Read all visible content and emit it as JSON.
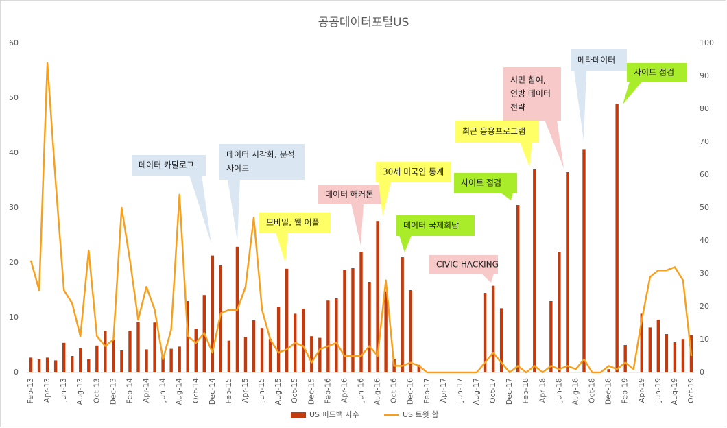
{
  "chart_data": {
    "type": "bar-line",
    "title": "공공데이터포털US",
    "categories": [
      "Feb-13",
      null,
      "Apr-13",
      null,
      "Jun-13",
      null,
      "Aug-13",
      null,
      "Oct-13",
      null,
      "Dec-13",
      null,
      "Feb-14",
      null,
      "Apr-14",
      null,
      "Jun-14",
      null,
      "Aug-14",
      null,
      "Oct-14",
      null,
      "Dec-14",
      null,
      "Feb-15",
      null,
      "Apr-15",
      null,
      "Jun-15",
      null,
      "Aug-15",
      null,
      "Oct-15",
      null,
      "Dec-15",
      null,
      "Feb-16",
      null,
      "Apr-16",
      null,
      "Jun-16",
      null,
      "Aug-16",
      null,
      "Oct-16",
      null,
      "Dec-16",
      null,
      "Feb-17",
      null,
      "Apr-17",
      null,
      "Jun-17",
      null,
      "Aug-17",
      null,
      "Oct-17",
      null,
      "Dec-17",
      null,
      "Feb-18",
      null,
      "Apr-18",
      null,
      "Jun-18",
      null,
      "Aug-18",
      null,
      "Oct-18",
      null,
      "Dec-18",
      null,
      "Feb-19",
      null,
      "Apr-19",
      null,
      "Jun-19",
      null,
      "Aug-19",
      null,
      "Oct-19"
    ],
    "series": [
      {
        "name": "US 피드백 지수",
        "color": "#c23b0e",
        "kind": "bar",
        "values": [
          2.7,
          2.4,
          2.7,
          2.2,
          5.4,
          3,
          4.4,
          2.4,
          4.9,
          7.6,
          6,
          4,
          7.6,
          9.2,
          4.2,
          9.1,
          3.2,
          4.3,
          4.7,
          13,
          8,
          14.1,
          21.3,
          19.5,
          5.8,
          22.9,
          6.5,
          9.5,
          8.1,
          6.1,
          11.9,
          18.9,
          10.7,
          11.6,
          6.6,
          6.3,
          13.1,
          13.5,
          18.7,
          19,
          22,
          16.5,
          27.6,
          14.8,
          2.5,
          21,
          15,
          1.4,
          0,
          0,
          0,
          0,
          0,
          0,
          0,
          14.5,
          15.8,
          11.7,
          0,
          30.5,
          0,
          37,
          0,
          13,
          22,
          36.5,
          0,
          40.7,
          0,
          0,
          0.6,
          49,
          5,
          0,
          10.7,
          8.2,
          9.6,
          7,
          5.5,
          6.1,
          6.8
        ]
      },
      {
        "name": "US 트윗 합",
        "color": "#f5a01e",
        "kind": "line",
        "axis": "y2",
        "values": [
          34,
          25,
          94,
          58,
          25,
          21,
          11,
          37,
          11,
          8,
          10,
          50,
          34,
          16,
          26,
          19,
          4,
          13,
          54,
          11,
          9,
          12,
          6,
          18,
          19,
          19,
          26,
          47,
          19,
          10,
          6,
          7,
          9,
          8,
          3,
          7,
          8,
          9,
          5,
          5,
          5,
          8,
          5,
          28,
          2,
          2,
          3,
          2,
          0,
          0,
          0,
          0,
          0,
          0,
          0,
          3,
          6,
          3,
          0,
          2,
          0,
          2,
          0,
          2,
          1,
          2,
          1,
          4,
          0,
          0,
          2,
          1,
          3,
          1,
          16,
          29,
          31,
          31,
          32,
          28,
          5
        ]
      }
    ],
    "ylim": [
      0,
      60
    ],
    "yticks": [
      0,
      10,
      20,
      30,
      40,
      50,
      60
    ],
    "y2lim": [
      0,
      100
    ],
    "y2ticks": [
      0,
      10,
      20,
      30,
      40,
      50,
      60,
      70,
      80,
      90,
      100
    ],
    "legend": "bottom",
    "annotations": [
      {
        "lines": [
          "데이터 카탈로그"
        ],
        "color": "#dae7f3"
      },
      {
        "lines": [
          "데이터 시각화, 분석",
          "사이트"
        ],
        "color": "#dae7f3"
      },
      {
        "lines": [
          "모바일, 웹 어플"
        ],
        "color": "#ffff66"
      },
      {
        "lines": [
          "데이터 해커톤"
        ],
        "color": "#f8c9c9"
      },
      {
        "lines": [
          "30세 미국인 통계"
        ],
        "color": "#ffff66"
      },
      {
        "lines": [
          "데이터 국제회담"
        ],
        "color": "#a8ec2a"
      },
      {
        "lines": [
          "CIVIC HACKING"
        ],
        "color": "#f8c9c9"
      },
      {
        "lines": [
          "사이트 점검"
        ],
        "color": "#a8ec2a"
      },
      {
        "lines": [
          "최근 응용프로그램"
        ],
        "color": "#ffff66"
      },
      {
        "lines": [
          "시민 참여,",
          "연방 데이터",
          "전략"
        ],
        "color": "#f8c9c9"
      },
      {
        "lines": [
          "메타데이터"
        ],
        "color": "#dae7f3"
      },
      {
        "lines": [
          "사이트 점검"
        ],
        "color": "#a8ec2a"
      }
    ]
  }
}
